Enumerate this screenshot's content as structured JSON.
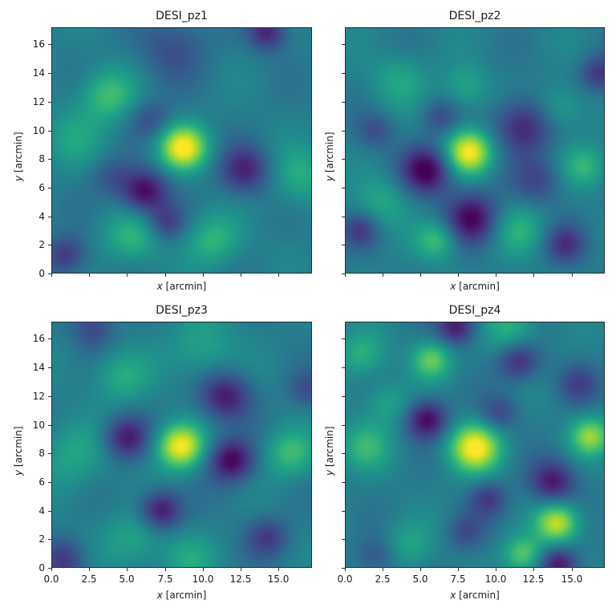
{
  "figure": {
    "panels": [
      {
        "title": "DESI_pz1",
        "show_xticklabels": false,
        "show_yticklabels": true
      },
      {
        "title": "DESI_pz2",
        "show_xticklabels": false,
        "show_yticklabels": false
      },
      {
        "title": "DESI_pz3",
        "show_xticklabels": true,
        "show_yticklabels": true
      },
      {
        "title": "DESI_pz4",
        "show_xticklabels": true,
        "show_yticklabels": false
      }
    ],
    "xlabel_var": "x",
    "xlabel_unit": " [arcmin]",
    "ylabel_var": "y",
    "ylabel_unit": " [arcmin]",
    "xticks": [
      "0.0",
      "2.5",
      "5.0",
      "7.5",
      "10.0",
      "12.5",
      "15.0"
    ],
    "yticks": [
      "0",
      "2",
      "4",
      "6",
      "8",
      "10",
      "12",
      "14",
      "16"
    ]
  },
  "chart_data": [
    {
      "type": "heatmap",
      "title": "DESI_pz1",
      "xlabel": "x [arcmin]",
      "ylabel": "y [arcmin]",
      "xlim": [
        0,
        17.2
      ],
      "ylim": [
        0,
        17.2
      ],
      "colormap": "viridis",
      "xticks": [
        0.0,
        2.5,
        5.0,
        7.5,
        10.0,
        12.5,
        15.0
      ],
      "yticks": [
        0,
        2,
        4,
        6,
        8,
        10,
        12,
        14,
        16
      ],
      "features": [
        {
          "x": 8.7,
          "y": 8.8,
          "amp": 1.0,
          "sigma": 1.1
        },
        {
          "x": 3.7,
          "y": 12.5,
          "amp": 0.45,
          "sigma": 1.3
        },
        {
          "x": 5.3,
          "y": 2.5,
          "amp": 0.4,
          "sigma": 1.3
        },
        {
          "x": 10.7,
          "y": 2.3,
          "amp": 0.4,
          "sigma": 1.3
        },
        {
          "x": 16.5,
          "y": 6.8,
          "amp": 0.35,
          "sigma": 1.4
        },
        {
          "x": 1.5,
          "y": 9.5,
          "amp": 0.25,
          "sigma": 1.5
        },
        {
          "x": 6.1,
          "y": 5.7,
          "amp": -0.7,
          "sigma": 1.1
        },
        {
          "x": 12.8,
          "y": 7.2,
          "amp": -0.55,
          "sigma": 1.2
        },
        {
          "x": 7.6,
          "y": 3.5,
          "amp": -0.4,
          "sigma": 0.9
        },
        {
          "x": 0.9,
          "y": 1.2,
          "amp": -0.45,
          "sigma": 1.0
        },
        {
          "x": 14.3,
          "y": 16.9,
          "amp": -0.55,
          "sigma": 0.9
        },
        {
          "x": 6.5,
          "y": 10.8,
          "amp": -0.3,
          "sigma": 1.0
        },
        {
          "x": 8.0,
          "y": 15.8,
          "amp": -0.3,
          "sigma": 1.6
        },
        {
          "x": 3.9,
          "y": 6.8,
          "amp": -0.25,
          "sigma": 1.0
        }
      ]
    },
    {
      "type": "heatmap",
      "title": "DESI_pz2",
      "xlabel": "x [arcmin]",
      "ylabel": "y [arcmin]",
      "xlim": [
        0,
        17.2
      ],
      "ylim": [
        0,
        17.2
      ],
      "colormap": "viridis",
      "xticks": [
        0.0,
        2.5,
        5.0,
        7.5,
        10.0,
        12.5,
        15.0
      ],
      "yticks": [
        0,
        2,
        4,
        6,
        8,
        10,
        12,
        14,
        16
      ],
      "features": [
        {
          "x": 8.2,
          "y": 8.5,
          "amp": 1.0,
          "sigma": 1.1
        },
        {
          "x": 6.1,
          "y": 2.3,
          "amp": 0.5,
          "sigma": 1.0
        },
        {
          "x": 15.9,
          "y": 7.5,
          "amp": 0.4,
          "sigma": 1.1
        },
        {
          "x": 11.5,
          "y": 3.0,
          "amp": 0.35,
          "sigma": 1.3
        },
        {
          "x": 14.3,
          "y": 11.6,
          "amp": 0.3,
          "sigma": 1.1
        },
        {
          "x": 3.6,
          "y": 13.5,
          "amp": 0.3,
          "sigma": 1.3
        },
        {
          "x": 8.0,
          "y": 13.0,
          "amp": 0.3,
          "sigma": 1.1
        },
        {
          "x": 2.5,
          "y": 5.0,
          "amp": 0.3,
          "sigma": 1.3
        },
        {
          "x": 5.4,
          "y": 7.2,
          "amp": -0.75,
          "sigma": 1.2
        },
        {
          "x": 8.4,
          "y": 3.8,
          "amp": -0.7,
          "sigma": 1.3
        },
        {
          "x": 11.8,
          "y": 10.3,
          "amp": -0.55,
          "sigma": 1.4
        },
        {
          "x": 1.0,
          "y": 3.0,
          "amp": -0.4,
          "sigma": 0.9
        },
        {
          "x": 14.6,
          "y": 2.0,
          "amp": -0.45,
          "sigma": 1.0
        },
        {
          "x": 16.9,
          "y": 14.0,
          "amp": -0.45,
          "sigma": 0.9
        },
        {
          "x": 6.3,
          "y": 11.0,
          "amp": -0.3,
          "sigma": 0.9
        },
        {
          "x": 2.0,
          "y": 10.0,
          "amp": -0.3,
          "sigma": 0.9
        },
        {
          "x": 12.8,
          "y": 6.5,
          "amp": -0.35,
          "sigma": 1.2
        }
      ]
    },
    {
      "type": "heatmap",
      "title": "DESI_pz3",
      "xlabel": "x [arcmin]",
      "ylabel": "y [arcmin]",
      "xlim": [
        0,
        17.2
      ],
      "ylim": [
        0,
        17.2
      ],
      "colormap": "viridis",
      "xticks": [
        0.0,
        2.5,
        5.0,
        7.5,
        10.0,
        12.5,
        15.0
      ],
      "yticks": [
        0,
        2,
        4,
        6,
        8,
        10,
        12,
        14,
        16
      ],
      "features": [
        {
          "x": 8.5,
          "y": 8.5,
          "amp": 1.0,
          "sigma": 1.1
        },
        {
          "x": 15.8,
          "y": 8.0,
          "amp": 0.45,
          "sigma": 1.2
        },
        {
          "x": 4.6,
          "y": 13.4,
          "amp": 0.35,
          "sigma": 1.3
        },
        {
          "x": 10.0,
          "y": 15.5,
          "amp": 0.3,
          "sigma": 1.5
        },
        {
          "x": 1.5,
          "y": 8.0,
          "amp": 0.3,
          "sigma": 1.6
        },
        {
          "x": 5.5,
          "y": 2.0,
          "amp": 0.3,
          "sigma": 1.4
        },
        {
          "x": 9.0,
          "y": 0.5,
          "amp": 0.3,
          "sigma": 1.2
        },
        {
          "x": 4.9,
          "y": 9.1,
          "amp": -0.6,
          "sigma": 1.1
        },
        {
          "x": 11.9,
          "y": 7.5,
          "amp": -0.7,
          "sigma": 1.1
        },
        {
          "x": 11.5,
          "y": 12.0,
          "amp": -0.6,
          "sigma": 1.2
        },
        {
          "x": 7.2,
          "y": 4.0,
          "amp": -0.65,
          "sigma": 1.0
        },
        {
          "x": 14.3,
          "y": 2.1,
          "amp": -0.4,
          "sigma": 1.0
        },
        {
          "x": 0.8,
          "y": 0.5,
          "amp": -0.4,
          "sigma": 1.0
        },
        {
          "x": 2.7,
          "y": 16.8,
          "amp": -0.35,
          "sigma": 1.0
        },
        {
          "x": 17.0,
          "y": 12.5,
          "amp": -0.3,
          "sigma": 0.9
        }
      ]
    },
    {
      "type": "heatmap",
      "title": "DESI_pz4",
      "xlabel": "x [arcmin]",
      "ylabel": "y [arcmin]",
      "xlim": [
        0,
        17.2
      ],
      "ylim": [
        0,
        17.2
      ],
      "colormap": "viridis",
      "xticks": [
        0.0,
        2.5,
        5.0,
        7.5,
        10.0,
        12.5,
        15.0
      ],
      "yticks": [
        0,
        2,
        4,
        6,
        8,
        10,
        12,
        14,
        16
      ],
      "features": [
        {
          "x": 8.6,
          "y": 8.4,
          "amp": 1.0,
          "sigma": 1.2
        },
        {
          "x": 14.1,
          "y": 3.1,
          "amp": 0.85,
          "sigma": 1.0
        },
        {
          "x": 16.3,
          "y": 9.2,
          "amp": 0.7,
          "sigma": 0.95
        },
        {
          "x": 5.7,
          "y": 14.6,
          "amp": 0.6,
          "sigma": 0.95
        },
        {
          "x": 11.8,
          "y": 0.9,
          "amp": 0.55,
          "sigma": 0.9
        },
        {
          "x": 1.3,
          "y": 8.5,
          "amp": 0.4,
          "sigma": 1.2
        },
        {
          "x": 11.0,
          "y": 16.8,
          "amp": 0.4,
          "sigma": 1.2
        },
        {
          "x": 1.0,
          "y": 15.0,
          "amp": 0.35,
          "sigma": 1.1
        },
        {
          "x": 4.0,
          "y": 1.5,
          "amp": 0.3,
          "sigma": 1.2
        },
        {
          "x": 2.8,
          "y": 11.5,
          "amp": 0.3,
          "sigma": 1.1
        },
        {
          "x": 5.4,
          "y": 10.4,
          "amp": -0.7,
          "sigma": 1.0
        },
        {
          "x": 13.8,
          "y": 6.0,
          "amp": -0.6,
          "sigma": 1.1
        },
        {
          "x": 7.4,
          "y": 16.9,
          "amp": -0.6,
          "sigma": 0.95
        },
        {
          "x": 11.5,
          "y": 14.5,
          "amp": -0.5,
          "sigma": 1.0
        },
        {
          "x": 14.2,
          "y": 0.2,
          "amp": -0.6,
          "sigma": 0.9
        },
        {
          "x": 9.5,
          "y": 4.8,
          "amp": -0.4,
          "sigma": 0.9
        },
        {
          "x": 10.2,
          "y": 10.8,
          "amp": -0.35,
          "sigma": 0.9
        },
        {
          "x": 15.5,
          "y": 12.9,
          "amp": -0.35,
          "sigma": 1.0
        },
        {
          "x": 8.0,
          "y": 2.5,
          "amp": -0.3,
          "sigma": 0.9
        },
        {
          "x": 2.2,
          "y": 0.8,
          "amp": -0.3,
          "sigma": 1.0
        }
      ]
    }
  ]
}
